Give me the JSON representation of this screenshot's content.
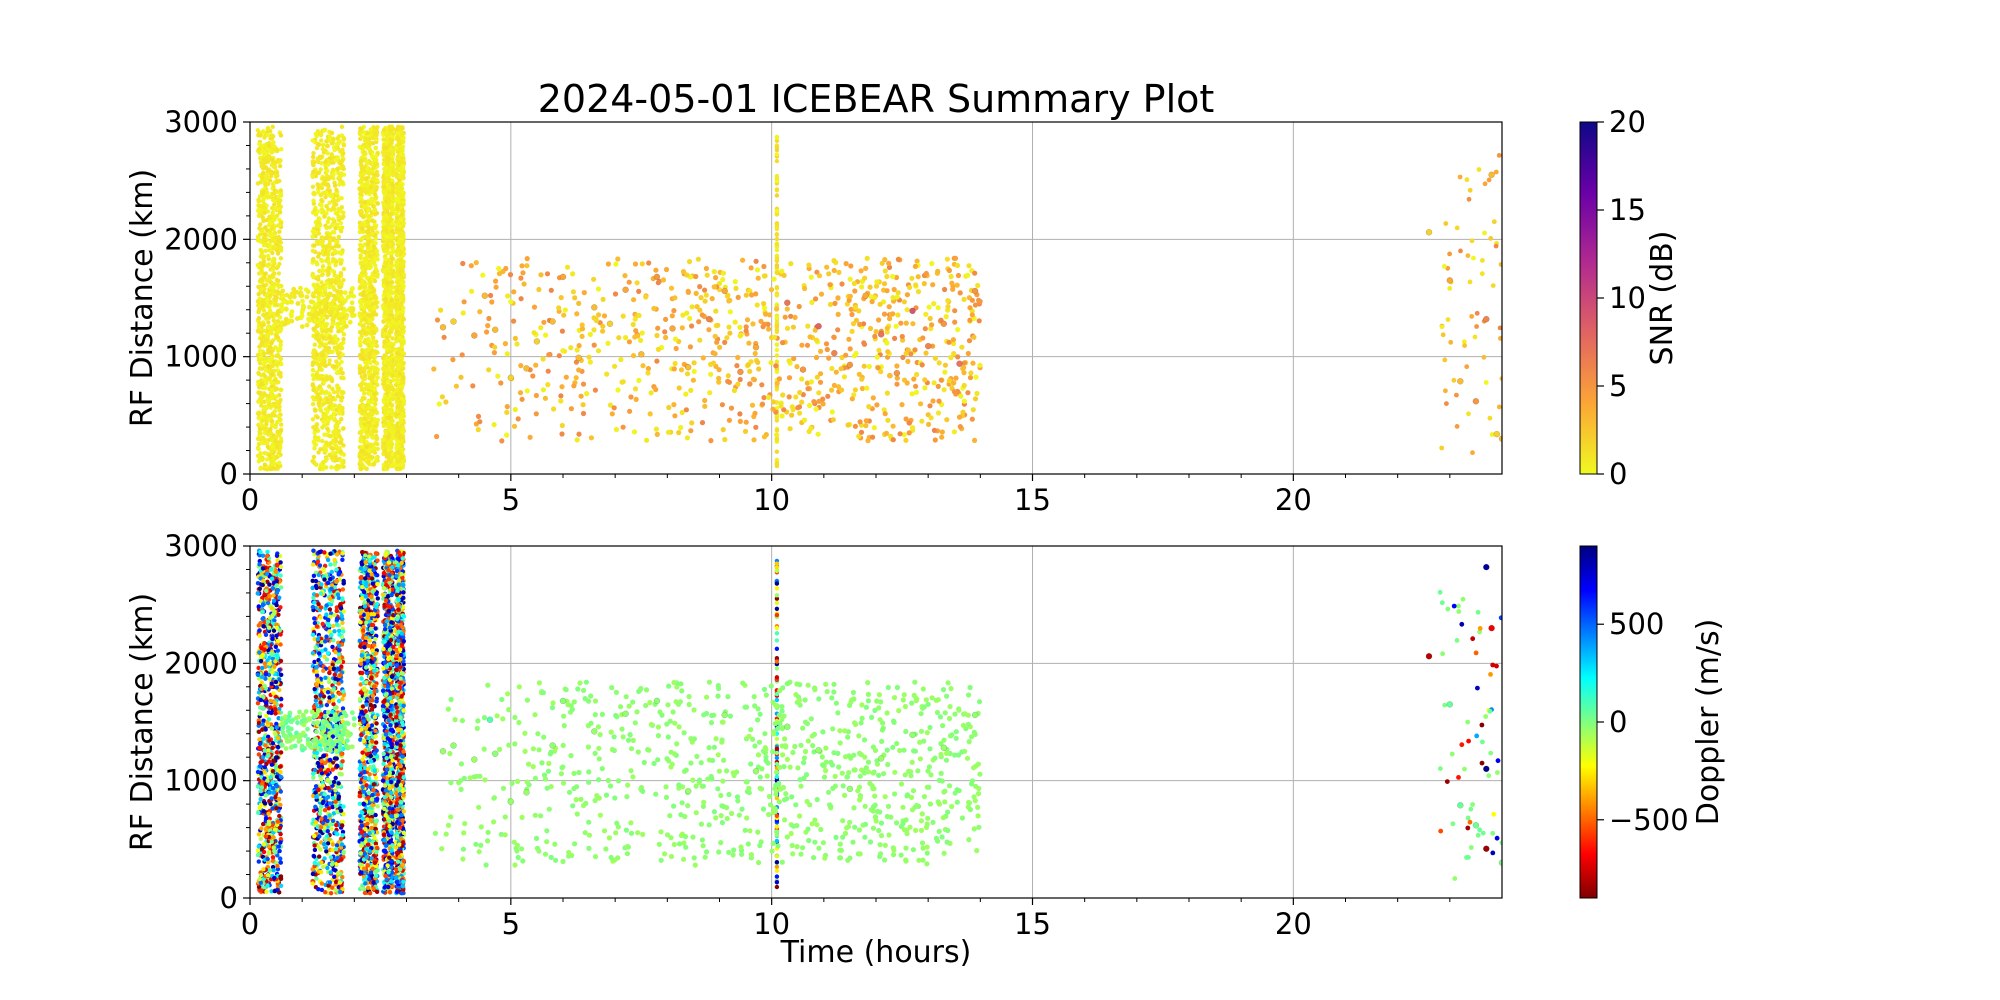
{
  "title": "2024-05-01 ICEBEAR Summary Plot",
  "xlabel": "Time (hours)",
  "chart_data": [
    {
      "type": "scatter",
      "panel": "snr",
      "title": "2024-05-01 ICEBEAR Summary Plot",
      "xlabel": "",
      "ylabel": "RF Distance (km)",
      "xlim": [
        0,
        24
      ],
      "ylim": [
        0,
        3000
      ],
      "xticks": [
        "0",
        "5",
        "10",
        "15",
        "20"
      ],
      "yticks": [
        "0",
        "1000",
        "2000",
        "3000"
      ],
      "grid": true,
      "colorbar": {
        "label": "SNR (dB)",
        "colormap": "plasma_r",
        "range": [
          0,
          20
        ],
        "ticks": [
          "0",
          "5",
          "10",
          "15",
          "20"
        ],
        "colors": [
          "#f0f921",
          "#fca636",
          "#e16462",
          "#b12a90",
          "#6a00a8",
          "#0d0887"
        ]
      },
      "series": [
        {
          "points": [
            [
              3.7,
              1250,
              3
            ],
            [
              3.9,
              1300,
              2
            ],
            [
              4.3,
              1180,
              4
            ],
            [
              4.5,
              1520,
              3
            ],
            [
              4.7,
              1230,
              3
            ],
            [
              5.0,
              820,
              2
            ],
            [
              5.3,
              900,
              3
            ],
            [
              5.5,
              1130,
              2
            ],
            [
              5.8,
              1300,
              3
            ],
            [
              6.0,
              1680,
              4
            ],
            [
              6.3,
              990,
              3
            ],
            [
              6.6,
              1420,
              3
            ],
            [
              6.9,
              1280,
              2
            ],
            [
              7.2,
              1570,
              4
            ],
            [
              7.5,
              1020,
              3
            ],
            [
              7.8,
              1680,
              5
            ],
            [
              8.1,
              1240,
              4
            ],
            [
              8.4,
              910,
              3
            ],
            [
              8.8,
              1320,
              6
            ],
            [
              9.1,
              1560,
              4
            ],
            [
              9.4,
              870,
              5
            ],
            [
              9.7,
              1080,
              4
            ],
            [
              10.3,
              1460,
              7
            ],
            [
              10.6,
              890,
              5
            ],
            [
              10.9,
              1260,
              8
            ],
            [
              11.2,
              1030,
              6
            ],
            [
              11.5,
              930,
              5
            ],
            [
              11.8,
              1520,
              4
            ],
            [
              12.1,
              1190,
              7
            ],
            [
              12.4,
              860,
              5
            ],
            [
              12.7,
              1390,
              9
            ],
            [
              13.0,
              1090,
              6
            ],
            [
              13.3,
              1280,
              5
            ],
            [
              13.6,
              940,
              7
            ],
            [
              13.9,
              1560,
              5
            ],
            [
              22.6,
              2060,
              2
            ],
            [
              23.0,
              1650,
              4
            ],
            [
              23.2,
              790,
              3
            ],
            [
              23.5,
              620,
              5
            ],
            [
              23.7,
              1320,
              6
            ],
            [
              23.8,
              2550,
              3
            ],
            [
              23.9,
              340,
              2
            ],
            [
              24.0,
              300,
              3
            ]
          ]
        }
      ]
    },
    {
      "type": "scatter",
      "panel": "doppler",
      "title": "",
      "xlabel": "Time (hours)",
      "ylabel": "RF Distance (km)",
      "xlim": [
        0,
        24
      ],
      "ylim": [
        0,
        3000
      ],
      "xticks": [
        "0",
        "5",
        "10",
        "15",
        "20"
      ],
      "yticks": [
        "0",
        "1000",
        "2000",
        "3000"
      ],
      "grid": true,
      "colorbar": {
        "label": "Doppler (m/s)",
        "colormap": "jet_r",
        "range": [
          -900,
          900
        ],
        "ticks": [
          "−500",
          "0",
          "500"
        ],
        "colors": [
          "#800000",
          "#ff0000",
          "#ff8000",
          "#ffff00",
          "#80ff80",
          "#00ffff",
          "#0080ff",
          "#0000ff",
          "#000080"
        ]
      },
      "series": [
        {
          "points": [
            [
              3.7,
              1250,
              -40
            ],
            [
              3.9,
              1300,
              -30
            ],
            [
              4.3,
              1180,
              -50
            ],
            [
              4.6,
              1520,
              80
            ],
            [
              4.7,
              1230,
              -20
            ],
            [
              5.0,
              820,
              -30
            ],
            [
              5.3,
              900,
              -40
            ],
            [
              5.8,
              1300,
              -30
            ],
            [
              6.0,
              1680,
              -20
            ],
            [
              6.6,
              1420,
              -40
            ],
            [
              7.2,
              1570,
              -30
            ],
            [
              7.8,
              1680,
              -20
            ],
            [
              8.4,
              910,
              -40
            ],
            [
              9.1,
              1560,
              -30
            ],
            [
              9.7,
              1080,
              -40
            ],
            [
              10.3,
              1460,
              -30
            ],
            [
              10.9,
              1260,
              -40
            ],
            [
              11.5,
              930,
              -30
            ],
            [
              12.1,
              1190,
              -40
            ],
            [
              12.7,
              1390,
              -30
            ],
            [
              13.3,
              1280,
              -40
            ],
            [
              13.9,
              1560,
              -30
            ],
            [
              22.6,
              2060,
              -800
            ],
            [
              23.0,
              1650,
              50
            ],
            [
              23.2,
              790,
              40
            ],
            [
              23.5,
              620,
              30
            ],
            [
              23.7,
              2820,
              850
            ],
            [
              23.7,
              1100,
              880
            ],
            [
              23.7,
              420,
              -850
            ],
            [
              23.8,
              2300,
              -700
            ],
            [
              24.0,
              300,
              20
            ]
          ]
        }
      ]
    }
  ]
}
